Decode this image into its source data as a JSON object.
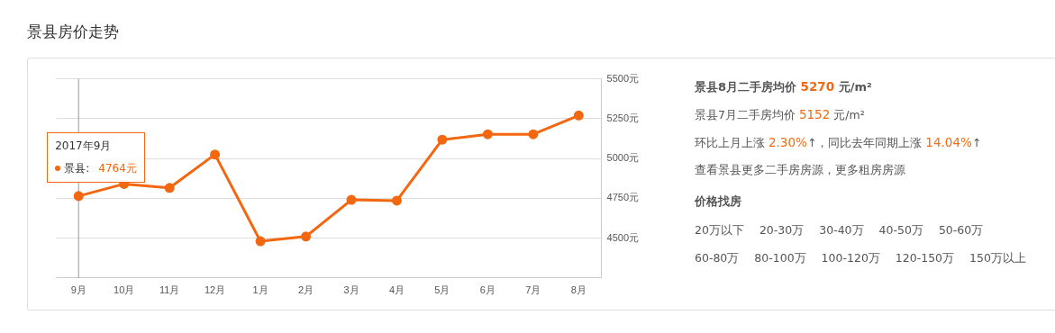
{
  "chart_data": [
    {
      "type": "line",
      "title": "景县房价走势",
      "categories": [
        "9月",
        "10月",
        "11月",
        "12月",
        "1月",
        "2月",
        "3月",
        "4月",
        "5月",
        "6月",
        "7月",
        "8月"
      ],
      "series": [
        {
          "color": "#f2670f",
          "values": [
            4764,
            4840,
            4815,
            5025,
            4480,
            4510,
            4740,
            4735,
            5118,
            5152,
            5152,
            5270
          ]
        }
      ],
      "ylim": [
        4250,
        5500
      ],
      "yticks": [
        {
          "value": 4500,
          "label": "4500元"
        },
        {
          "value": 4750,
          "label": "4750元"
        },
        {
          "value": 5000,
          "label": "5000元"
        },
        {
          "value": 5250,
          "label": "5250元"
        },
        {
          "value": 5500,
          "label": "5500元"
        }
      ],
      "grid": "y",
      "legend": false,
      "marker": "circle",
      "line_style": "solid",
      "ref_lines": [
        {
          "axis": "x",
          "value": "9月",
          "color": "#999999"
        }
      ],
      "annotations": [
        "2017年9月",
        "景县:",
        "4764元"
      ]
    },
    {
      "type": "other",
      "annotations": [
        "景县8月二手房均价 5270 元/m²",
        "景县7月二手房均价 5152 元/m²",
        "环比上月上涨 2.30%↑，同比去年同期上涨 14.04%↑",
        "查看景县更多二手房房源，更多租房房源",
        "价格找房",
        "20万以下",
        "20-30万",
        "30-40万",
        "40-50万",
        "50-60万",
        "60-80万",
        "80-100万",
        "100-120万",
        "120-150万",
        "150万以上"
      ]
    }
  ]
}
